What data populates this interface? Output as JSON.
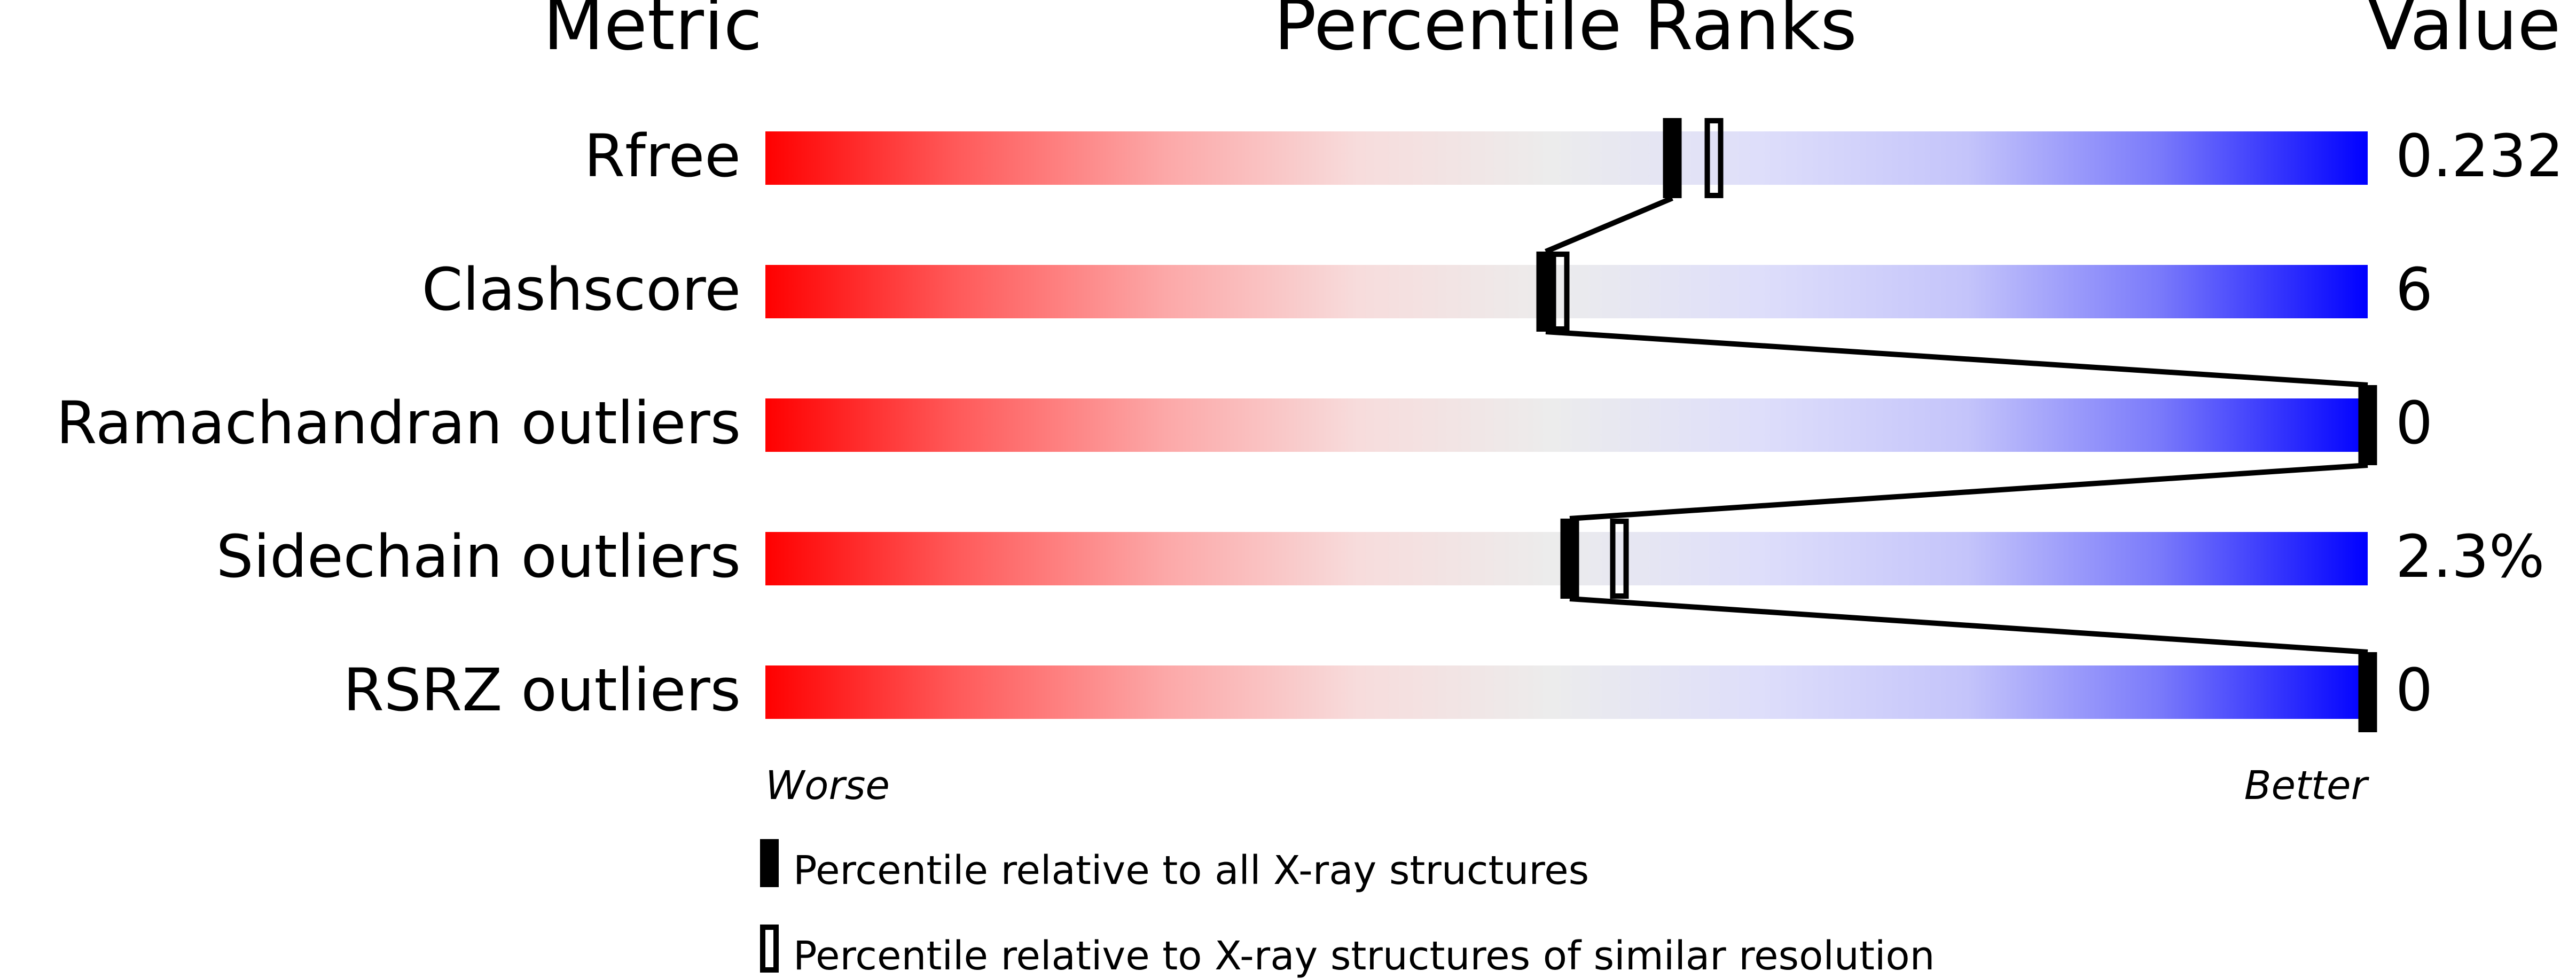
{
  "chart_data": {
    "type": "percentile-slider",
    "headers": {
      "metric": "Metric",
      "ranks": "Percentile Ranks",
      "value": "Value"
    },
    "xlim": [
      0,
      100
    ],
    "axis_labels": {
      "left": "Worse",
      "right": "Better"
    },
    "colors": {
      "worse": "#ff0000",
      "middle": "#ececec",
      "better": "#0000ff",
      "marker": "#000000"
    },
    "metrics": [
      {
        "name": "Rfree",
        "value": "0.232",
        "percentile_all": 56.6,
        "percentile_similar": 59.2
      },
      {
        "name": "Clashscore",
        "value": "6",
        "percentile_all": 48.7,
        "percentile_similar": 49.6
      },
      {
        "name": "Ramachandran outliers",
        "value": "0",
        "percentile_all": 100,
        "percentile_similar": 100
      },
      {
        "name": "Sidechain outliers",
        "value": "2.3%",
        "percentile_all": 50.2,
        "percentile_similar": 53.3
      },
      {
        "name": "RSRZ outliers",
        "value": "0",
        "percentile_all": 100,
        "percentile_similar": 100
      }
    ],
    "legend": [
      {
        "marker": "filled",
        "label": "Percentile relative to all X-ray structures"
      },
      {
        "marker": "hollow",
        "label": "Percentile relative to X-ray structures of similar resolution"
      }
    ]
  }
}
